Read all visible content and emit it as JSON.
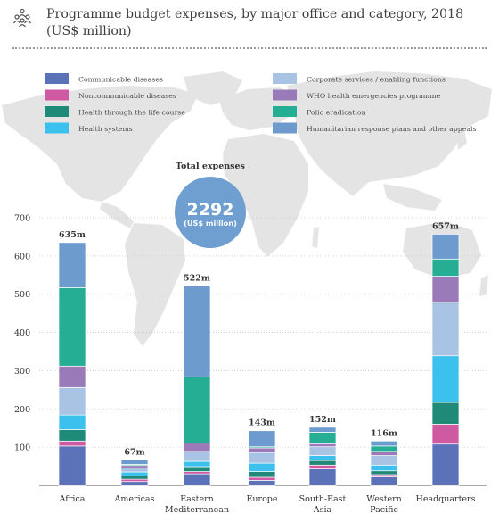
{
  "header": {
    "title": "Programme budget expenses, by major office and category, 2018",
    "subtitle": "(US$ million)",
    "icon": "people-group-icon"
  },
  "total": {
    "label": "Total expenses",
    "value": "2292",
    "unit": "(US$ million)"
  },
  "colors": {
    "background_map": "#e4e4e4",
    "bubble": "#6f9fd0"
  },
  "chart_data": {
    "type": "bar",
    "stacked": true,
    "categories": [
      "Africa",
      "Americas",
      "Eastern Mediterranean",
      "Europe",
      "South-East Asia",
      "Western Pacific",
      "Headquarters"
    ],
    "category_labels": [
      [
        "Africa"
      ],
      [
        "Americas"
      ],
      [
        "Eastern",
        "Mediterranean"
      ],
      [
        "Europe"
      ],
      [
        "South-East",
        "Asia"
      ],
      [
        "Western",
        "Pacific"
      ],
      [
        "Headquarters"
      ]
    ],
    "totals": [
      635,
      67,
      522,
      143,
      152,
      116,
      657
    ],
    "total_labels": [
      "635m",
      "67m",
      "522m",
      "143m",
      "152m",
      "116m",
      "657m"
    ],
    "ylim": [
      0,
      700
    ],
    "yticks": [
      100,
      200,
      300,
      400,
      500,
      600,
      700
    ],
    "legend_position": "top",
    "series": [
      {
        "name": "Communicable diseases",
        "color": "#5b72b8",
        "values": [
          103,
          10,
          30,
          13,
          43,
          22,
          108
        ]
      },
      {
        "name": "Noncommunicable diseases",
        "color": "#cf5aa2",
        "values": [
          13,
          6,
          6,
          8,
          10,
          6,
          52
        ]
      },
      {
        "name": "Health through the life course",
        "color": "#1f8a78",
        "values": [
          30,
          9,
          13,
          15,
          12,
          10,
          57
        ]
      },
      {
        "name": "Health systems",
        "color": "#3cc1ee",
        "values": [
          38,
          10,
          14,
          22,
          13,
          15,
          122
        ]
      },
      {
        "name": "Corporate services / enabling functions",
        "color": "#a8c3e3",
        "values": [
          72,
          11,
          26,
          28,
          23,
          25,
          140
        ]
      },
      {
        "name": "WHO health emergencies programme",
        "color": "#9a7ab8",
        "values": [
          56,
          6,
          22,
          12,
          8,
          11,
          68
        ]
      },
      {
        "name": "Polio eradication",
        "color": "#25ae93",
        "values": [
          205,
          3,
          173,
          3,
          30,
          14,
          45
        ]
      },
      {
        "name": "Humanitarian response plans and other appeals",
        "color": "#6d9bcd",
        "values": [
          118,
          12,
          238,
          42,
          13,
          13,
          65
        ]
      }
    ]
  }
}
